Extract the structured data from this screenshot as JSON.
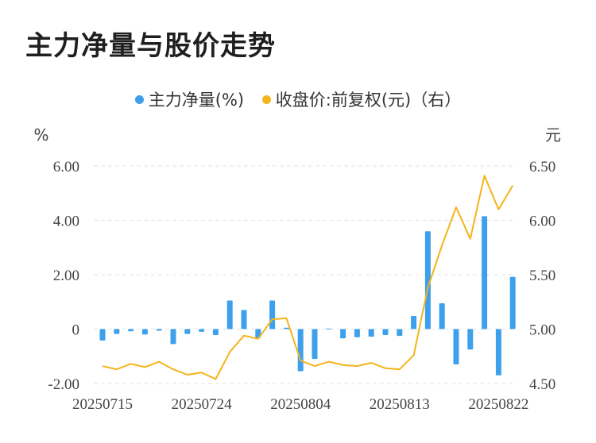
{
  "title": "主力净量与股价走势",
  "legend": {
    "bar_label": "主力净量(%)",
    "line_label": "收盘价:前复权(元)（右）"
  },
  "colors": {
    "bar": "#3da0ec",
    "line": "#f4b41a",
    "grid": "#e2e2e2"
  },
  "chart_data": {
    "type": "bar+line",
    "title": "主力净量与股价走势",
    "y_left_unit": "%",
    "y_right_unit": "元",
    "y_left_ticks": [
      "6.00",
      "4.00",
      "2.00",
      "0",
      "-2.00"
    ],
    "y_left_tick_values": [
      6,
      4,
      2,
      0,
      -2
    ],
    "y_right_ticks": [
      "6.50",
      "6.00",
      "5.50",
      "5.00",
      "4.50"
    ],
    "y_right_tick_values": [
      6.5,
      6.0,
      5.5,
      5.0,
      4.5
    ],
    "y_left_range": [
      -2,
      6
    ],
    "y_right_range": [
      4.5,
      6.5
    ],
    "x_tick_labels": [
      "20250715",
      "20250724",
      "20250804",
      "20250813",
      "20250822"
    ],
    "x_tick_indices": [
      0,
      7,
      14,
      21,
      28
    ],
    "grid": true,
    "legend_position": "top",
    "series": [
      {
        "name": "主力净量(%)",
        "type": "bar",
        "axis": "left",
        "values": [
          -0.42,
          -0.18,
          -0.08,
          -0.2,
          -0.06,
          -0.55,
          -0.18,
          -0.1,
          -0.22,
          1.05,
          0.7,
          -0.32,
          1.05,
          0.05,
          -1.55,
          -1.1,
          0.02,
          -0.34,
          -0.3,
          -0.28,
          -0.22,
          -0.25,
          0.48,
          3.6,
          0.95,
          -1.3,
          -0.75,
          4.15,
          -1.7,
          1.92
        ]
      },
      {
        "name": "收盘价:前复权(元)（右）",
        "type": "line",
        "axis": "right",
        "values": [
          4.66,
          4.63,
          4.68,
          4.65,
          4.7,
          4.63,
          4.58,
          4.6,
          4.54,
          4.79,
          4.94,
          4.91,
          5.09,
          5.1,
          4.71,
          4.66,
          4.7,
          4.67,
          4.66,
          4.69,
          4.64,
          4.63,
          4.76,
          5.38,
          5.77,
          6.12,
          5.83,
          6.41,
          6.1,
          6.32
        ]
      }
    ]
  }
}
